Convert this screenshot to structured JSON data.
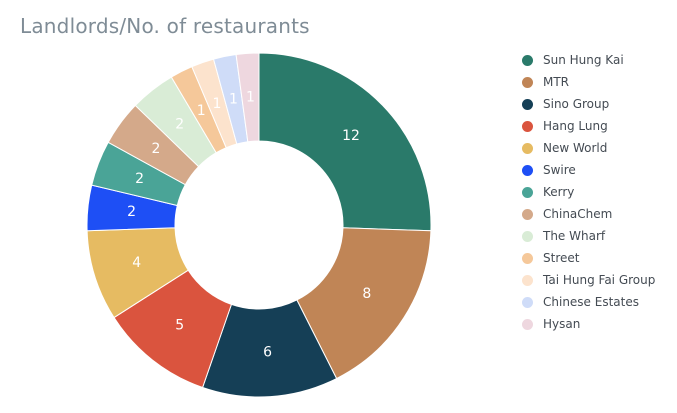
{
  "chart_data": {
    "type": "pie",
    "title": "Landlords/No. of restaurants",
    "hole": true,
    "legend": "right",
    "categories": [
      "Sun Hung Kai",
      "MTR",
      "Sino Group",
      "Hang Lung",
      "New World",
      "Swire",
      "Kerry",
      "ChinaChem",
      "The Wharf",
      "Street",
      "Tai Hung Fai Group",
      "Chinese Estates",
      "Hysan"
    ],
    "values": [
      12,
      8,
      6,
      5,
      4,
      2,
      2,
      2,
      2,
      1,
      1,
      1,
      1
    ],
    "colors": [
      "#2a7a6a",
      "#c08556",
      "#153f56",
      "#da543e",
      "#e6bb62",
      "#1e4ff5",
      "#4aa497",
      "#d4a98a",
      "#d9ecd6",
      "#f5c89a",
      "#fce3cd",
      "#cfdcf8",
      "#eed7df"
    ],
    "label_colors": [
      "#ffffff",
      "#ffffff",
      "#ffffff",
      "#ffffff",
      "#ffffff",
      "#ffffff",
      "#ffffff",
      "#ffffff",
      "#ffffff",
      "#ffffff",
      "#ffffff",
      "#ffffff",
      "#ffffff"
    ]
  }
}
